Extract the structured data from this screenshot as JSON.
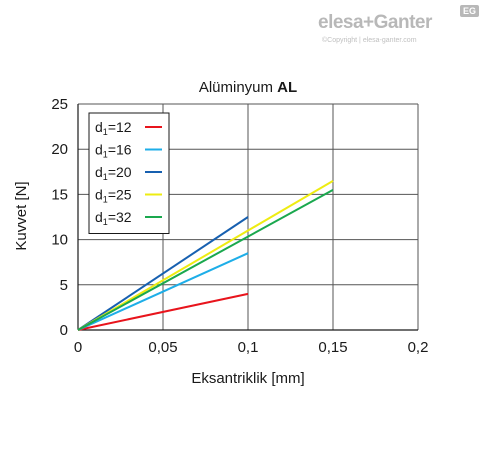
{
  "brand": {
    "name": "elesa+Ganter",
    "badge": "EG",
    "copyright": "©Copyright | elesa-ganter.com",
    "color": "#b8b8b8"
  },
  "chart_data": {
    "type": "line",
    "title_prefix": "Alüminyum ",
    "title_bold": "AL",
    "xlabel": "Eksantriklik [mm]",
    "ylabel": "Kuvvet [N]",
    "xlim": [
      0,
      0.2
    ],
    "ylim": [
      0,
      25
    ],
    "x_ticks": [
      0,
      0.05,
      0.1,
      0.15,
      0.2
    ],
    "x_tick_labels": [
      "0",
      "0,05",
      "0,1",
      "0,15",
      "0,2"
    ],
    "y_ticks": [
      0,
      5,
      10,
      15,
      20,
      25
    ],
    "y_tick_labels": [
      "0",
      "5",
      "10",
      "15",
      "20",
      "25"
    ],
    "grid": true,
    "legend_position": "top-left",
    "series": [
      {
        "name_main": "d",
        "name_sub": "1",
        "name_rest": "=12",
        "color": "#e8141c",
        "x": [
          0,
          0.1
        ],
        "y": [
          0,
          4
        ]
      },
      {
        "name_main": "d",
        "name_sub": "1",
        "name_rest": "=16",
        "color": "#1eaee8",
        "x": [
          0,
          0.1
        ],
        "y": [
          0,
          8.5
        ]
      },
      {
        "name_main": "d",
        "name_sub": "1",
        "name_rest": "=20",
        "color": "#1760b0",
        "x": [
          0,
          0.1
        ],
        "y": [
          0,
          12.5
        ]
      },
      {
        "name_main": "d",
        "name_sub": "1",
        "name_rest": "=25",
        "color": "#eeec12",
        "x": [
          0,
          0.15
        ],
        "y": [
          0,
          16.5
        ]
      },
      {
        "name_main": "d",
        "name_sub": "1",
        "name_rest": "=32",
        "color": "#1aa84e",
        "x": [
          0,
          0.15
        ],
        "y": [
          0,
          15.5
        ]
      }
    ]
  }
}
